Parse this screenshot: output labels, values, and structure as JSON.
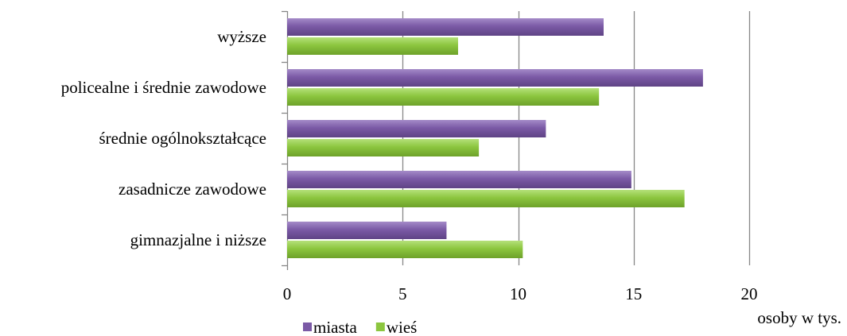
{
  "chart_data": {
    "type": "bar",
    "orientation": "horizontal",
    "categories": [
      "wyższe",
      "policealne i średnie zawodowe",
      "średnie ogólnokształcące",
      "zasadnicze zawodowe",
      "gimnazjalne i niższe"
    ],
    "series": [
      {
        "name": "miasta",
        "values": [
          13.7,
          18.0,
          11.2,
          14.9,
          6.9
        ],
        "color": "#7b5aa6"
      },
      {
        "name": "wieś",
        "values": [
          7.4,
          13.5,
          8.3,
          17.2,
          10.2
        ],
        "color": "#8cc63f"
      }
    ],
    "xlabel": "osoby w tys.",
    "xlim": [
      0,
      20
    ],
    "xticks": [
      0,
      5,
      10,
      15,
      20
    ],
    "grid": true,
    "legend_position": "bottom"
  }
}
